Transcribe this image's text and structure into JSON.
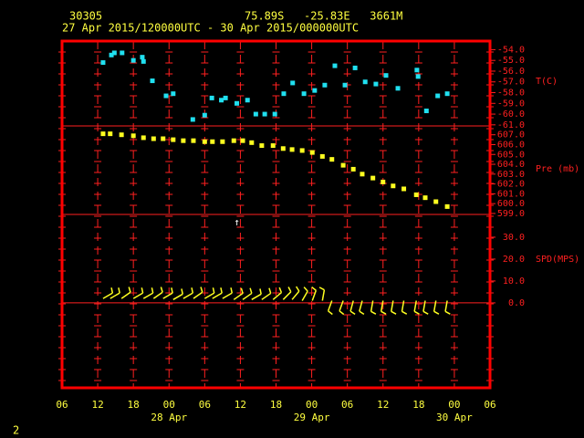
{
  "header": {
    "station": "30305",
    "location": "75.89S   -25.83E   3661M",
    "period": "27 Apr 2015/120000UTC - 30 Apr 2015/000000UTC"
  },
  "footer": "2",
  "chart_data": [
    {
      "type": "scatter",
      "axis_label": "T(C)",
      "color": "#20e0f0",
      "x": [
        12.9,
        14.3,
        14.8,
        16.1,
        18.0,
        19.5,
        19.7,
        21.2,
        23.5,
        24.7,
        28.0,
        30.0,
        31.2,
        32.8,
        33.5,
        35.4,
        37.2,
        38.6,
        40.1,
        41.8,
        43.3,
        44.8,
        46.7,
        48.5,
        50.2,
        51.9,
        53.6,
        55.3,
        57.0,
        58.8,
        60.5,
        62.5,
        65.7,
        65.9,
        67.3,
        69.2,
        70.8
      ],
      "values": [
        -55.2,
        -54.5,
        -54.3,
        -54.3,
        -55.0,
        -54.7,
        -55.1,
        -56.9,
        -58.3,
        -58.1,
        -60.5,
        -60.1,
        -58.5,
        -58.7,
        -58.5,
        -59.0,
        -58.7,
        -60.0,
        -60.0,
        -60.0,
        -58.1,
        -57.1,
        -58.1,
        -57.8,
        -57.3,
        -55.5,
        -57.3,
        -55.7,
        -57.0,
        -57.2,
        -56.4,
        -57.6,
        -55.9,
        -56.5,
        -59.7,
        -58.3,
        -58.1
      ],
      "xlim": [
        6,
        78
      ],
      "ylim": [
        -61.1,
        -53.2
      ],
      "yticks": [
        {
          "value": -54,
          "label": "-54.0"
        },
        {
          "value": -55,
          "label": "-55.0"
        },
        {
          "value": -56,
          "label": "-56.0"
        },
        {
          "value": -57,
          "label": "-57.0"
        },
        {
          "value": -58,
          "label": "-58.0"
        },
        {
          "value": -59,
          "label": "-59.0"
        },
        {
          "value": -60,
          "label": "-60.0"
        },
        {
          "value": -61,
          "label": "-61.0"
        }
      ]
    },
    {
      "type": "scatter",
      "axis_label": "Pre (mb)",
      "color": "#ffff20",
      "x": [
        12.9,
        14.1,
        16.0,
        18.0,
        19.7,
        21.4,
        23.0,
        24.7,
        26.4,
        28.1,
        30.0,
        31.3,
        33.0,
        34.9,
        36.4,
        37.9,
        39.6,
        41.5,
        43.2,
        44.7,
        46.4,
        48.1,
        49.8,
        51.4,
        53.3,
        55.0,
        56.5,
        58.3,
        60.0,
        61.7,
        63.5,
        65.6,
        67.1,
        68.9,
        70.8
      ],
      "values": [
        607.1,
        607.1,
        607.0,
        606.9,
        606.7,
        606.6,
        606.6,
        606.5,
        606.4,
        606.4,
        606.3,
        606.3,
        606.3,
        606.4,
        606.4,
        606.2,
        605.9,
        605.9,
        605.6,
        605.5,
        605.4,
        605.2,
        604.8,
        604.5,
        603.9,
        603.5,
        603.0,
        602.6,
        602.2,
        601.8,
        601.5,
        600.9,
        600.6,
        600.2,
        599.7
      ],
      "xlim": [
        6,
        78
      ],
      "ylim": [
        598.9,
        607.9
      ],
      "yticks": [
        {
          "value": 607,
          "label": "607.0"
        },
        {
          "value": 606,
          "label": "606.0"
        },
        {
          "value": 605,
          "label": "605.0"
        },
        {
          "value": 604,
          "label": "604.0"
        },
        {
          "value": 603,
          "label": "603.0"
        },
        {
          "value": 602,
          "label": "602.0"
        },
        {
          "value": 601,
          "label": "601.0"
        },
        {
          "value": 600,
          "label": "600.0"
        },
        {
          "value": 599,
          "label": "599.0"
        }
      ],
      "annotation": "↑"
    },
    {
      "type": "barbs",
      "axis_label": "SPD(MPS)",
      "color": "#ffff20",
      "x": [
        12.9,
        14.1,
        16.0,
        18.0,
        19.7,
        21.4,
        23.0,
        24.7,
        26.4,
        28.1,
        30.0,
        31.3,
        33.0,
        34.9,
        36.4,
        37.9,
        39.6,
        41.5,
        43.2,
        44.7,
        46.4,
        48.1,
        49.8,
        51.4,
        53.3,
        55.0,
        56.5,
        58.3,
        60.0,
        61.7,
        63.5,
        65.6,
        67.1,
        68.9,
        70.8
      ],
      "values": [
        2,
        2,
        2,
        2,
        2,
        2,
        2,
        1.5,
        2,
        2,
        2,
        2,
        2,
        1.5,
        1.5,
        1.5,
        1.5,
        1.5,
        1.5,
        1.5,
        1,
        1,
        1,
        1,
        1,
        1,
        1,
        1,
        1,
        1,
        1,
        1,
        1,
        1,
        1
      ],
      "direction": [
        60,
        60,
        55,
        60,
        60,
        55,
        60,
        60,
        60,
        55,
        60,
        60,
        60,
        55,
        55,
        60,
        55,
        50,
        45,
        40,
        30,
        20,
        10,
        200,
        200,
        195,
        195,
        190,
        190,
        190,
        190,
        190,
        190,
        190,
        190
      ],
      "xlim": [
        6,
        78
      ],
      "ylim": [
        -38.8,
        40.4
      ],
      "yticks": [
        {
          "value": 30,
          "label": "30.0"
        },
        {
          "value": 20,
          "label": "20.0"
        },
        {
          "value": 10,
          "label": "10.0"
        },
        {
          "value": 0,
          "label": "0.0"
        }
      ],
      "xticks": [
        {
          "value": 6,
          "label": "06"
        },
        {
          "value": 12,
          "label": "12"
        },
        {
          "value": 18,
          "label": "18"
        },
        {
          "value": 24,
          "label": "00"
        },
        {
          "value": 30,
          "label": "06"
        },
        {
          "value": 36,
          "label": "12"
        },
        {
          "value": 42,
          "label": "18"
        },
        {
          "value": 48,
          "label": "00"
        },
        {
          "value": 54,
          "label": "06"
        },
        {
          "value": 60,
          "label": "12"
        },
        {
          "value": 66,
          "label": "18"
        },
        {
          "value": 72,
          "label": "00"
        },
        {
          "value": 78,
          "label": "06"
        }
      ],
      "date_labels": [
        {
          "value": 24,
          "label": "28 Apr"
        },
        {
          "value": 48,
          "label": "29 Apr"
        },
        {
          "value": 72,
          "label": "30 Apr"
        }
      ]
    }
  ]
}
